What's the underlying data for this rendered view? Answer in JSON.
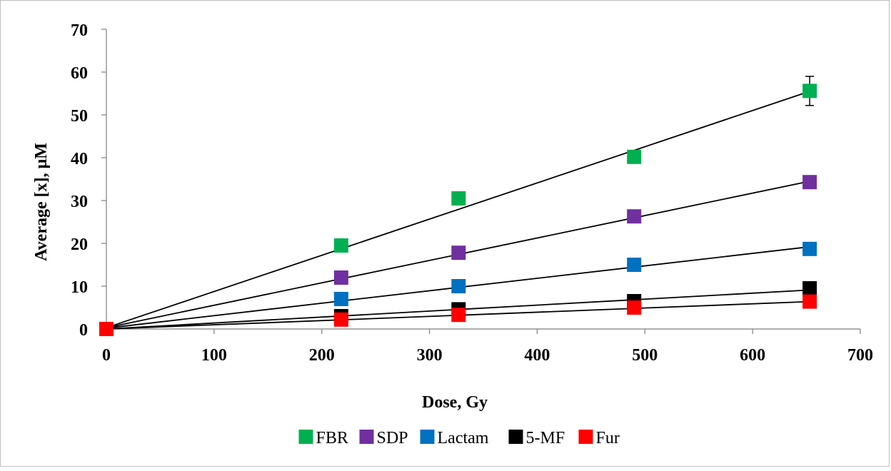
{
  "chart_data": {
    "type": "scatter",
    "title": "",
    "xlabel": "Dose, Gy",
    "ylabel": "Average [x], μM",
    "xlim": [
      0,
      700
    ],
    "ylim": [
      0,
      70
    ],
    "xticks": [
      0,
      100,
      200,
      300,
      400,
      500,
      600,
      700
    ],
    "yticks": [
      0,
      10,
      20,
      30,
      40,
      50,
      60,
      70
    ],
    "grid": false,
    "legend_position": "bottom",
    "x": [
      0,
      218,
      327,
      490,
      653
    ],
    "series": [
      {
        "name": "FBR",
        "color": "#00b050",
        "values": [
          0,
          19.5,
          30.5,
          40.2,
          55.6
        ],
        "error": [
          0,
          0,
          0,
          0,
          3.4
        ],
        "trend": [
          0.3,
          55.5
        ]
      },
      {
        "name": "SDP",
        "color": "#7030a0",
        "values": [
          0,
          12.0,
          17.8,
          26.3,
          34.3
        ],
        "error": [
          0,
          0,
          0,
          0,
          0
        ],
        "trend": [
          0.3,
          34.5
        ]
      },
      {
        "name": "Lactam",
        "color": "#0070c0",
        "values": [
          0,
          7.0,
          10.0,
          15.0,
          18.7
        ],
        "error": [
          0,
          0,
          0,
          0,
          0
        ],
        "trend": [
          0.2,
          19.2
        ]
      },
      {
        "name": "5-MF",
        "color": "#000000",
        "values": [
          0,
          3.0,
          4.6,
          6.5,
          9.5
        ],
        "error": [
          0,
          0,
          0,
          0,
          0
        ],
        "trend": [
          0.0,
          9.1
        ]
      },
      {
        "name": "Fur",
        "color": "#ff0000",
        "values": [
          0,
          2.2,
          3.3,
          5.0,
          6.4
        ],
        "error": [
          0,
          0,
          0,
          0,
          0
        ],
        "trend": [
          0.0,
          6.4
        ]
      }
    ],
    "trendline_color": "#000000"
  }
}
